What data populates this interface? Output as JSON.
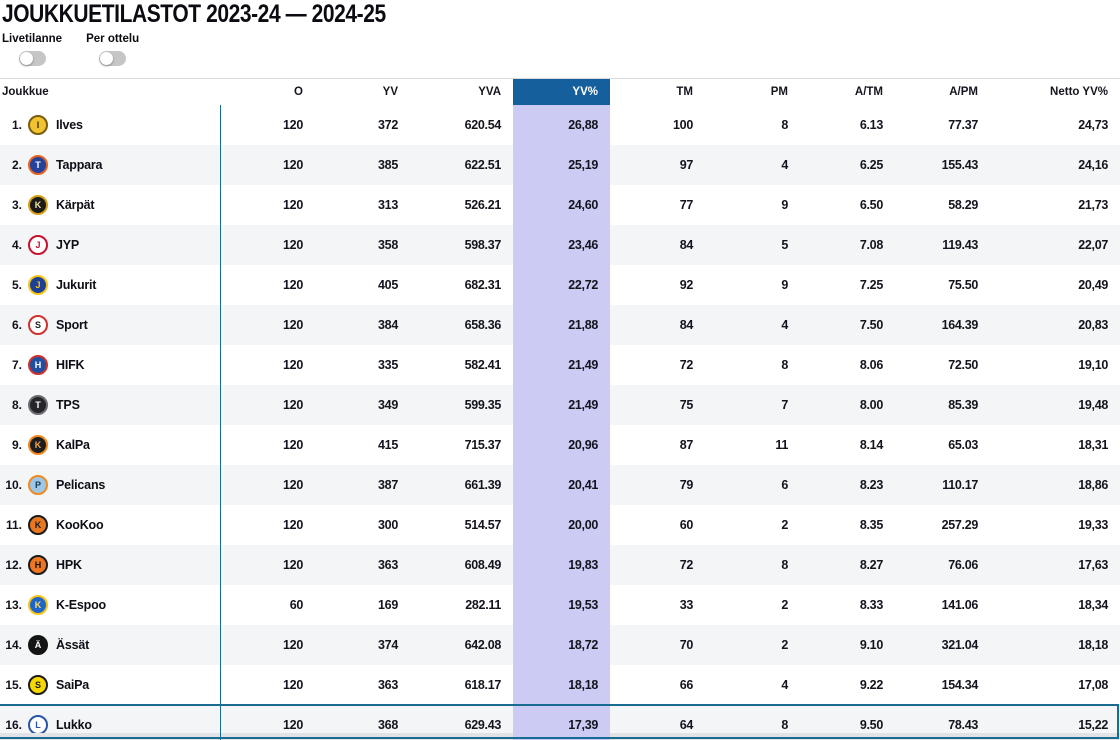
{
  "page": {
    "title": "JOUKKUETILASTOT 2023-24 — 2024-25",
    "toggles": [
      {
        "label": "Livetilanne",
        "state": "off"
      },
      {
        "label": "Per ottelu",
        "state": "off"
      }
    ]
  },
  "colors": {
    "accent_header_blue": "#155f9d",
    "highlight_column_lavender": "#cbcbf4",
    "divider_blue": "#1a6b92",
    "row_alt_gray": "#f4f5f7",
    "toggle_track_gray": "#c6c6c6"
  },
  "table": {
    "columns": [
      "Joukkue",
      "O",
      "YV",
      "YVA",
      "YV%",
      "TM",
      "PM",
      "A/TM",
      "A/PM",
      "Netto YV%"
    ],
    "highlighted_column": "YV%",
    "cutoff_line_above_rank": 16,
    "rows": [
      {
        "rank": "1.",
        "team": "Ilves",
        "logo": {
          "icon": "ilves-logo-icon",
          "initial": "I",
          "bg": "#f2c330",
          "ring": "#7a5c10",
          "fg": "#3a2c06"
        },
        "values": [
          "120",
          "372",
          "620.54",
          "26,88",
          "100",
          "8",
          "6.13",
          "77.37",
          "24,73"
        ]
      },
      {
        "rank": "2.",
        "team": "Tappara",
        "logo": {
          "icon": "tappara-logo-icon",
          "initial": "T",
          "bg": "#24429b",
          "ring": "#e8641e",
          "fg": "#ffffff"
        },
        "values": [
          "120",
          "385",
          "622.51",
          "25,19",
          "97",
          "4",
          "6.25",
          "155.43",
          "24,16"
        ]
      },
      {
        "rank": "3.",
        "team": "Kärpät",
        "logo": {
          "icon": "karpat-logo-icon",
          "initial": "K",
          "bg": "#1b1b1b",
          "ring": "#d4a017",
          "fg": "#f5e2a0"
        },
        "values": [
          "120",
          "313",
          "526.21",
          "24,60",
          "77",
          "9",
          "6.50",
          "58.29",
          "21,73"
        ]
      },
      {
        "rank": "4.",
        "team": "JYP",
        "logo": {
          "icon": "jyp-logo-icon",
          "initial": "J",
          "bg": "#ffffff",
          "ring": "#c8102e",
          "fg": "#c8102e"
        },
        "values": [
          "120",
          "358",
          "598.37",
          "23,46",
          "84",
          "5",
          "7.08",
          "119.43",
          "22,07"
        ]
      },
      {
        "rank": "5.",
        "team": "Jukurit",
        "logo": {
          "icon": "jukurit-logo-icon",
          "initial": "J",
          "bg": "#1d3f94",
          "ring": "#f5c518",
          "fg": "#f5c518"
        },
        "values": [
          "120",
          "405",
          "682.31",
          "22,72",
          "92",
          "9",
          "7.25",
          "75.50",
          "20,49"
        ]
      },
      {
        "rank": "6.",
        "team": "Sport",
        "logo": {
          "icon": "sport-logo-icon",
          "initial": "S",
          "bg": "#ffffff",
          "ring": "#d0312d",
          "fg": "#1b1b1b"
        },
        "values": [
          "120",
          "384",
          "658.36",
          "21,88",
          "84",
          "4",
          "7.50",
          "164.39",
          "20,83"
        ]
      },
      {
        "rank": "7.",
        "team": "HIFK",
        "logo": {
          "icon": "hifk-logo-icon",
          "initial": "H",
          "bg": "#1f4fa0",
          "ring": "#d0312d",
          "fg": "#ffffff"
        },
        "values": [
          "120",
          "335",
          "582.41",
          "21,49",
          "72",
          "8",
          "8.06",
          "72.50",
          "19,10"
        ]
      },
      {
        "rank": "8.",
        "team": "TPS",
        "logo": {
          "icon": "tps-logo-icon",
          "initial": "T",
          "bg": "#26262a",
          "ring": "#6d6d72",
          "fg": "#ffffff"
        },
        "values": [
          "120",
          "349",
          "599.35",
          "21,49",
          "75",
          "7",
          "8.00",
          "85.39",
          "19,48"
        ]
      },
      {
        "rank": "9.",
        "team": "KalPa",
        "logo": {
          "icon": "kalpa-logo-icon",
          "initial": "K",
          "bg": "#1e1e20",
          "ring": "#f08a1e",
          "fg": "#f0a74e"
        },
        "values": [
          "120",
          "415",
          "715.37",
          "20,96",
          "87",
          "11",
          "8.14",
          "65.03",
          "18,31"
        ]
      },
      {
        "rank": "10.",
        "team": "Pelicans",
        "logo": {
          "icon": "pelicans-logo-icon",
          "initial": "P",
          "bg": "#9cc7e6",
          "ring": "#f08a1e",
          "fg": "#16344f"
        },
        "values": [
          "120",
          "387",
          "661.39",
          "20,41",
          "79",
          "6",
          "8.23",
          "110.17",
          "18,86"
        ]
      },
      {
        "rank": "11.",
        "team": "KooKoo",
        "logo": {
          "icon": "kookoo-logo-icon",
          "initial": "K",
          "bg": "#e87722",
          "ring": "#1b1b1b",
          "fg": "#1b1b1b"
        },
        "values": [
          "120",
          "300",
          "514.57",
          "20,00",
          "60",
          "2",
          "8.35",
          "257.29",
          "19,33"
        ]
      },
      {
        "rank": "12.",
        "team": "HPK",
        "logo": {
          "icon": "hpk-logo-icon",
          "initial": "H",
          "bg": "#ee7623",
          "ring": "#1b1b1b",
          "fg": "#101010"
        },
        "values": [
          "120",
          "363",
          "608.49",
          "19,83",
          "72",
          "8",
          "8.27",
          "76.06",
          "17,63"
        ]
      },
      {
        "rank": "13.",
        "team": "K-Espoo",
        "logo": {
          "icon": "kespoo-logo-icon",
          "initial": "K",
          "bg": "#1f64c8",
          "ring": "#f5c518",
          "fg": "#f5e26a"
        },
        "values": [
          "60",
          "169",
          "282.11",
          "19,53",
          "33",
          "2",
          "8.33",
          "141.06",
          "18,34"
        ]
      },
      {
        "rank": "14.",
        "team": "Ässät",
        "logo": {
          "icon": "assat-logo-icon",
          "initial": "Ä",
          "bg": "#141414",
          "ring": "#141414",
          "fg": "#ffffff"
        },
        "values": [
          "120",
          "374",
          "642.08",
          "18,72",
          "70",
          "2",
          "9.10",
          "321.04",
          "18,18"
        ]
      },
      {
        "rank": "15.",
        "team": "SaiPa",
        "logo": {
          "icon": "saipa-logo-icon",
          "initial": "S",
          "bg": "#f5d800",
          "ring": "#1b1b1b",
          "fg": "#1b1b1b"
        },
        "values": [
          "120",
          "363",
          "618.17",
          "18,18",
          "66",
          "4",
          "9.22",
          "154.34",
          "17,08"
        ]
      },
      {
        "rank": "16.",
        "team": "Lukko",
        "logo": {
          "icon": "lukko-logo-icon",
          "initial": "L",
          "bg": "#ffffff",
          "ring": "#2a55a4",
          "fg": "#2a55a4"
        },
        "values": [
          "120",
          "368",
          "629.43",
          "17,39",
          "64",
          "8",
          "9.50",
          "78.43",
          "15,22"
        ]
      }
    ]
  }
}
